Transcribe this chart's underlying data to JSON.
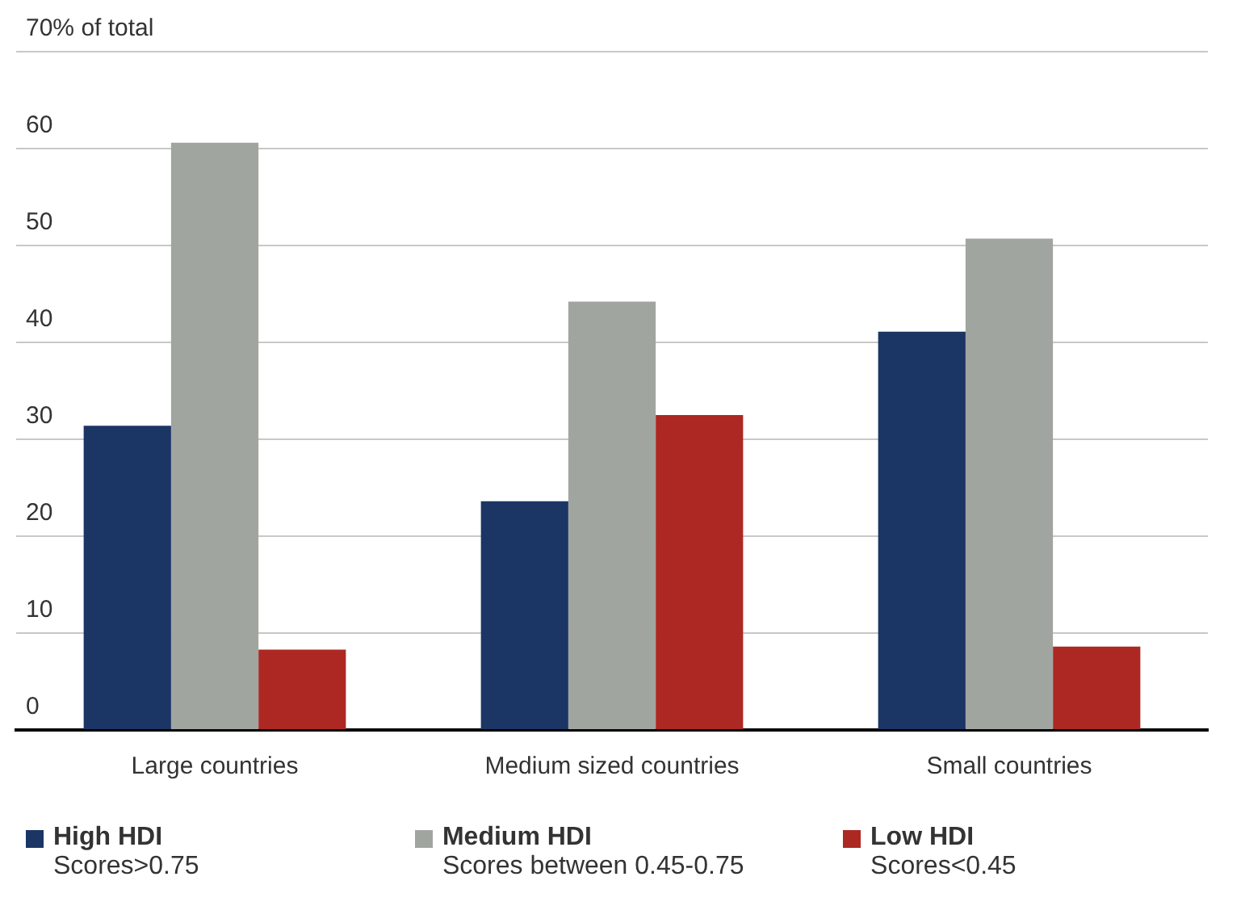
{
  "chart_data": {
    "type": "bar",
    "categories": [
      "Large countries",
      "Medium sized countries",
      "Small countries"
    ],
    "series": [
      {
        "name": "High HDI",
        "color": "#1b3564",
        "values": [
          31.4,
          23.6,
          41.1
        ]
      },
      {
        "name": "Medium HDI",
        "color": "#a1a59f",
        "values": [
          60.6,
          44.2,
          50.7
        ]
      },
      {
        "name": "Low HDI",
        "color": "#ad2823",
        "values": [
          8.3,
          32.5,
          8.6
        ]
      }
    ],
    "ylim": [
      0,
      70
    ],
    "yticks": [
      0,
      10,
      20,
      30,
      40,
      50,
      60,
      {
        "value": 70,
        "label": "70% of total"
      }
    ],
    "grid": "y",
    "legend": "bottom",
    "annotations": [
      "Scores>0.75",
      "Scores between 0.45-0.75",
      "Scores<0.45"
    ]
  }
}
